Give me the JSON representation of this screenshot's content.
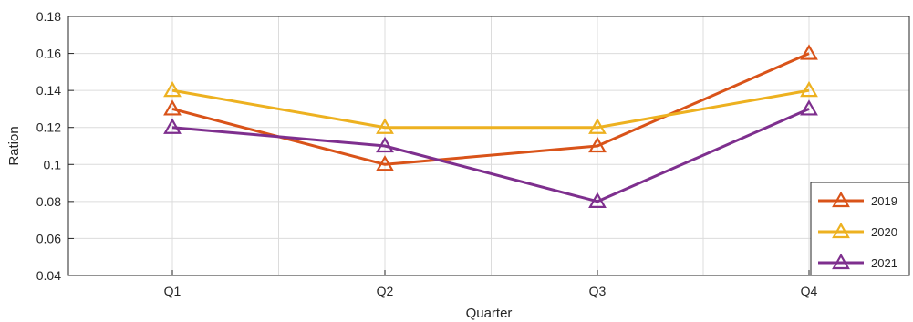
{
  "chart_data": {
    "type": "line",
    "title": "",
    "xlabel": "Quarter",
    "ylabel": "Ration",
    "categories": [
      "Q1",
      "Q2",
      "Q3",
      "Q4"
    ],
    "ylim": [
      0.04,
      0.18
    ],
    "yticks": [
      0.04,
      0.06,
      0.08,
      0.1,
      0.12,
      0.14,
      0.16,
      0.18
    ],
    "ytick_labels": [
      "0.04",
      "0.06",
      "0.08",
      "0.1",
      "0.12",
      "0.14",
      "0.16",
      "0.18"
    ],
    "grid": true,
    "legend_position": "bottom-right",
    "marker": "triangle",
    "series": [
      {
        "name": "2019",
        "color": "#D95319",
        "values": [
          0.13,
          0.1,
          0.11,
          0.16
        ]
      },
      {
        "name": "2020",
        "color": "#EDB120",
        "values": [
          0.14,
          0.12,
          0.12,
          0.14
        ]
      },
      {
        "name": "2021",
        "color": "#7E2F8E",
        "values": [
          0.12,
          0.11,
          0.08,
          0.13
        ]
      }
    ]
  }
}
